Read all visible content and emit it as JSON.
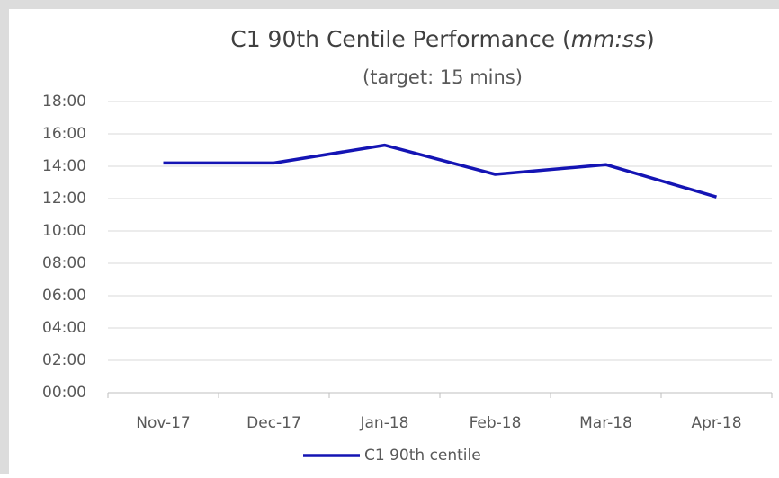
{
  "chart_data": {
    "type": "line",
    "title_parts": [
      "C1 90th Centile Performance (",
      "mm:ss",
      ")"
    ],
    "subtitle": "(target: 15 mins)",
    "categories": [
      "Nov-17",
      "Dec-17",
      "Jan-18",
      "Feb-18",
      "Mar-18",
      "Apr-18"
    ],
    "series": [
      {
        "name": "C1 90th centile",
        "color": "#1414b4",
        "values": [
          14.2,
          14.2,
          15.3,
          13.5,
          14.1,
          12.1
        ]
      }
    ],
    "ylim": [
      0,
      18
    ],
    "yticks": [
      {
        "value": 0,
        "label": "00:00"
      },
      {
        "value": 2,
        "label": "02:00"
      },
      {
        "value": 4,
        "label": "04:00"
      },
      {
        "value": 6,
        "label": "06:00"
      },
      {
        "value": 8,
        "label": "08:00"
      },
      {
        "value": 10,
        "label": "10:00"
      },
      {
        "value": 12,
        "label": "12:00"
      },
      {
        "value": 14,
        "label": "14:00"
      },
      {
        "value": 16,
        "label": "16:00"
      },
      {
        "value": 18,
        "label": "18:00"
      }
    ],
    "grid": true,
    "legend": "bottom"
  }
}
